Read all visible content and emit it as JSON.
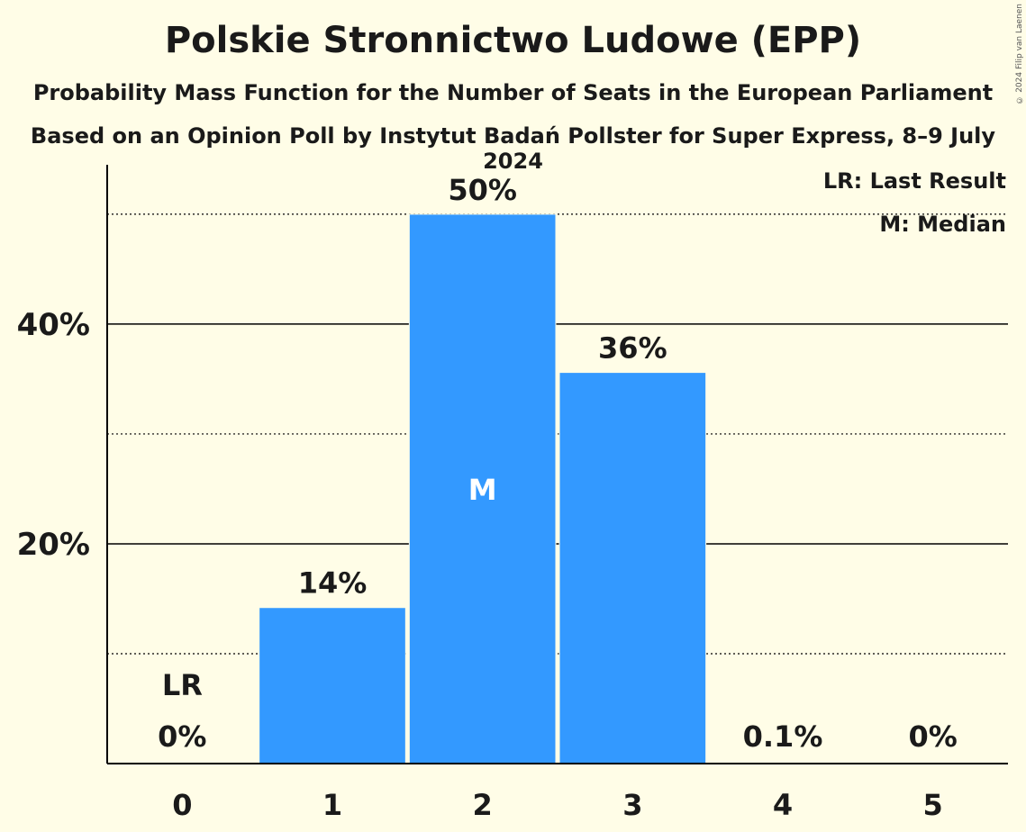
{
  "chart_data": {
    "type": "bar",
    "title": "Polskie Stronnictwo Ludowe (EPP)",
    "subtitle": "Probability Mass Function for the Number of Seats in the European Parliament",
    "subtitle2": "Based on an Opinion Poll by Instytut Badań Pollster for Super Express, 8–9 July 2024",
    "categories": [
      "0",
      "1",
      "2",
      "3",
      "4",
      "5"
    ],
    "values": [
      0,
      14.2,
      50,
      35.6,
      0.1,
      0
    ],
    "value_labels": [
      "0%",
      "14%",
      "50%",
      "36%",
      "0.1%",
      "0%"
    ],
    "ylim": [
      0,
      54.5
    ],
    "y_ticks": [
      {
        "value": 20,
        "label": "20%",
        "style": "solid"
      },
      {
        "value": 40,
        "label": "40%",
        "style": "solid"
      }
    ],
    "dotted_gridlines": [
      10,
      30,
      50
    ],
    "last_result_category": "0",
    "last_result_marker": "LR",
    "median_category": "2",
    "median_marker": "M",
    "legend": [
      "LR: Last Result",
      "M: Median"
    ],
    "legend_position": "top-right",
    "bar_color": "#3399FF"
  },
  "copyright": "© 2024 Filip van Laenen"
}
